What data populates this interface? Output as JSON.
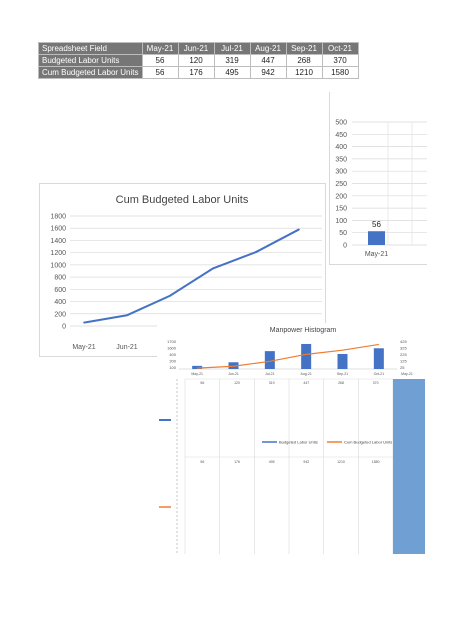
{
  "sheet": {
    "header_label": "Spreadsheet Field",
    "months": [
      "May-21",
      "Jun-21",
      "Jul-21",
      "Aug-21",
      "Sep-21",
      "Oct-21"
    ],
    "rows": [
      {
        "label": "Budgeted Labor Units",
        "values": [
          "56",
          "120",
          "319",
          "447",
          "268",
          "370"
        ]
      },
      {
        "label": "Cum Budgeted Labor Units",
        "values": [
          "56",
          "176",
          "495",
          "942",
          "1210",
          "1580"
        ]
      }
    ]
  },
  "chart_data": [
    {
      "id": "cum",
      "type": "line",
      "title": "Cum Budgeted Labor Units",
      "x": [
        "May-21",
        "Jun-21",
        "Jul-21",
        "Aug-21",
        "Sep-21",
        "Oct-21"
      ],
      "x_ticks_visible": [
        "May-21",
        "Jun-21"
      ],
      "series": [
        {
          "values": [
            56,
            176,
            495,
            942,
            1210,
            1580
          ]
        }
      ],
      "yticks": [
        0,
        200,
        400,
        600,
        800,
        1000,
        1200,
        1400,
        1600,
        1800
      ],
      "ylim": [
        0,
        1800
      ],
      "grid": true,
      "color": "#4472c4"
    },
    {
      "id": "mini",
      "type": "bar",
      "categories": [
        "May-21"
      ],
      "values": [
        56
      ],
      "data_label": "56",
      "yticks": [
        0,
        50,
        100,
        150,
        200,
        250,
        300,
        350,
        400,
        450,
        500
      ],
      "ylim": [
        0,
        500
      ],
      "grid": true,
      "color": "#4472c4"
    },
    {
      "id": "manpower",
      "type": "bar",
      "title": "Manpower Histogram",
      "categories": [
        "May-21",
        "Jun-21",
        "Jul-21",
        "Aug-21",
        "Sep-21",
        "Oct-21"
      ],
      "x_ticks_visible": [
        "May-21",
        "Jun-21",
        "Jul-21",
        "Aug-21",
        "Sep-21",
        "Oct-21",
        "May-21"
      ],
      "series": [
        {
          "name": "Budgeted Labor Units",
          "type": "bar",
          "values": [
            56,
            120,
            319,
            447,
            268,
            370
          ],
          "color": "#4472c4"
        },
        {
          "name": "Cum Budgeted Labor Units",
          "type": "line",
          "values": [
            56,
            176,
            495,
            942,
            1210,
            1580
          ],
          "color": "#ed7d31"
        }
      ],
      "left_ticks": [
        "1700",
        "1600",
        "400",
        "200",
        "100"
      ],
      "right_ticks": [
        "425",
        "325",
        "225",
        "125",
        "25"
      ],
      "table_rows": [
        [
          "56",
          "120",
          "319",
          "447",
          "268",
          "370"
        ],
        [
          "56",
          "176",
          "495",
          "942",
          "1210",
          "1580"
        ]
      ],
      "highlight_color": "#6f9fd3"
    }
  ]
}
